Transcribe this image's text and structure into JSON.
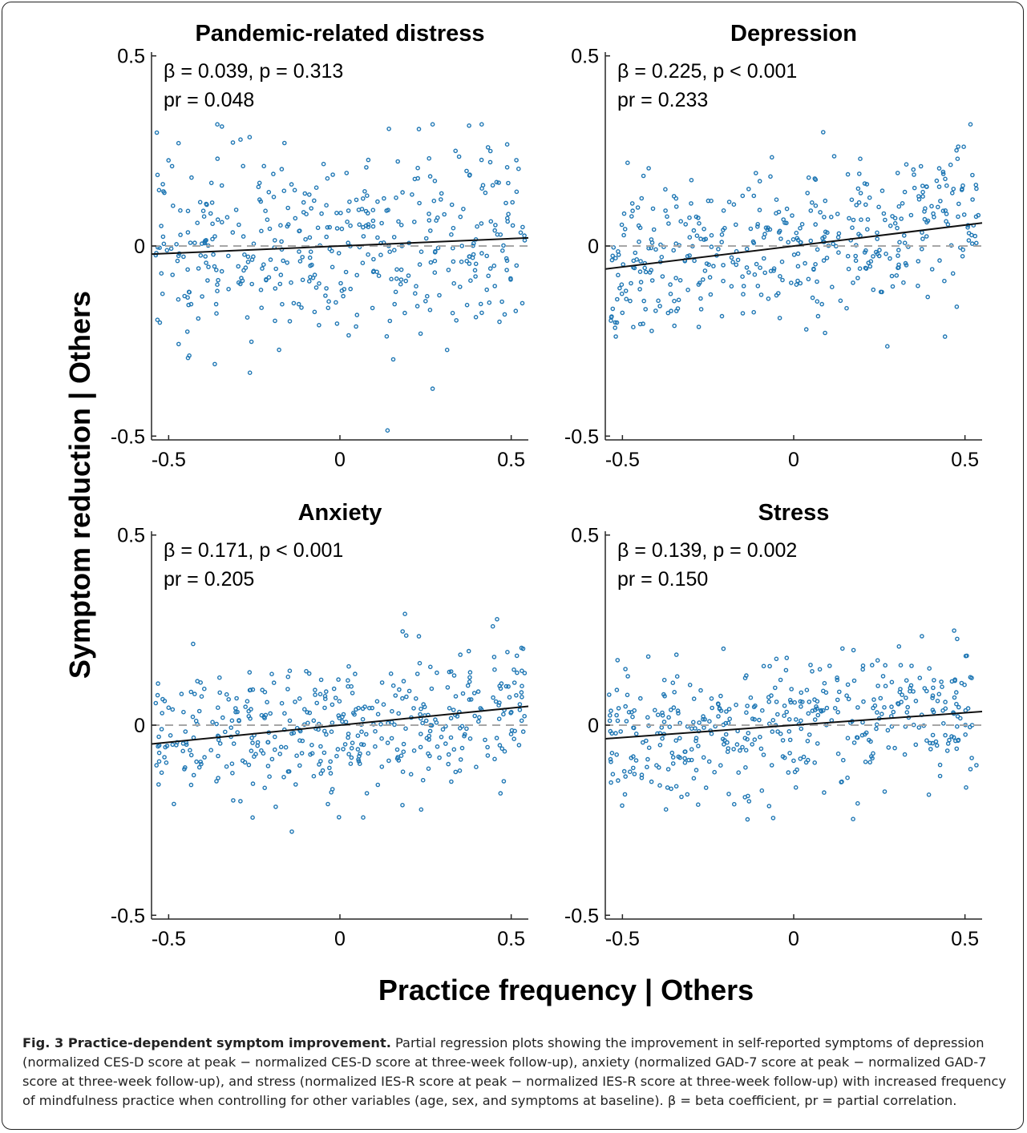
{
  "chart_data": [
    {
      "type": "scatter",
      "title": "Pandemic-related distress",
      "stats_line1": "β = 0.039, p = 0.313",
      "stats_line2": "pr = 0.048",
      "xlim": [
        -0.55,
        0.55
      ],
      "ylim": [
        -0.51,
        0.51
      ],
      "xticks": [
        "-0.5",
        "0",
        "0.5"
      ],
      "yticks": [
        "0.5",
        "0",
        "-0.5"
      ],
      "fit_line": {
        "slope": 0.039,
        "intercept": 0.0
      },
      "reference_line": 0,
      "n_points": 430,
      "point_spread_sd": 0.13,
      "point_seed": 11
    },
    {
      "type": "scatter",
      "title": "Depression",
      "stats_line1": "β = 0.225, p < 0.001",
      "stats_line2": "pr = 0.233",
      "xlim": [
        -0.55,
        0.55
      ],
      "ylim": [
        -0.51,
        0.51
      ],
      "xticks": [
        "-0.5",
        "0",
        "0.5"
      ],
      "yticks": [
        "0.5",
        "0",
        "-0.5"
      ],
      "fit_line": {
        "slope": 0.11,
        "intercept": 0.0
      },
      "reference_line": 0,
      "n_points": 430,
      "point_spread_sd": 0.1,
      "point_seed": 23
    },
    {
      "type": "scatter",
      "title": "Anxiety",
      "stats_line1": "β = 0.171, p < 0.001",
      "stats_line2": "pr = 0.205",
      "xlim": [
        -0.55,
        0.55
      ],
      "ylim": [
        -0.51,
        0.51
      ],
      "xticks": [
        "-0.5",
        "0",
        "0.5"
      ],
      "yticks": [
        "0.5",
        "0",
        "-0.5"
      ],
      "fit_line": {
        "slope": 0.09,
        "intercept": 0.0
      },
      "reference_line": 0,
      "n_points": 430,
      "point_spread_sd": 0.09,
      "point_seed": 37
    },
    {
      "type": "scatter",
      "title": "Stress",
      "stats_line1": "β = 0.139, p = 0.002",
      "stats_line2": "pr = 0.150",
      "xlim": [
        -0.55,
        0.55
      ],
      "ylim": [
        -0.51,
        0.51
      ],
      "xticks": [
        "-0.5",
        "0",
        "0.5"
      ],
      "yticks": [
        "0.5",
        "0",
        "-0.5"
      ],
      "fit_line": {
        "slope": 0.065,
        "intercept": 0.0
      },
      "reference_line": 0,
      "n_points": 430,
      "point_spread_sd": 0.09,
      "point_seed": 53
    }
  ],
  "axes": {
    "y_label": "Symptom reduction | Others",
    "x_label": "Practice frequency | Others"
  },
  "colors": {
    "points": "#1f77b4",
    "fit_line": "#111111",
    "reference_line": "#a6a6a6"
  },
  "caption": {
    "title": "Fig. 3 Practice-dependent symptom improvement.",
    "body": "Partial regression plots showing the improvement in self-reported symptoms of depression (normalized CES-D score at peak − normalized CES-D score at three-week follow-up), anxiety (normalized GAD-7 score at peak − normalized GAD-7 score at three-week follow-up), and stress (normalized IES-R score at peak − normalized IES-R score at three-week follow-up) with increased frequency of mindfulness practice when controlling for other variables (age, sex, and symptoms at baseline). β = beta coefficient, pr = partial correlation."
  }
}
